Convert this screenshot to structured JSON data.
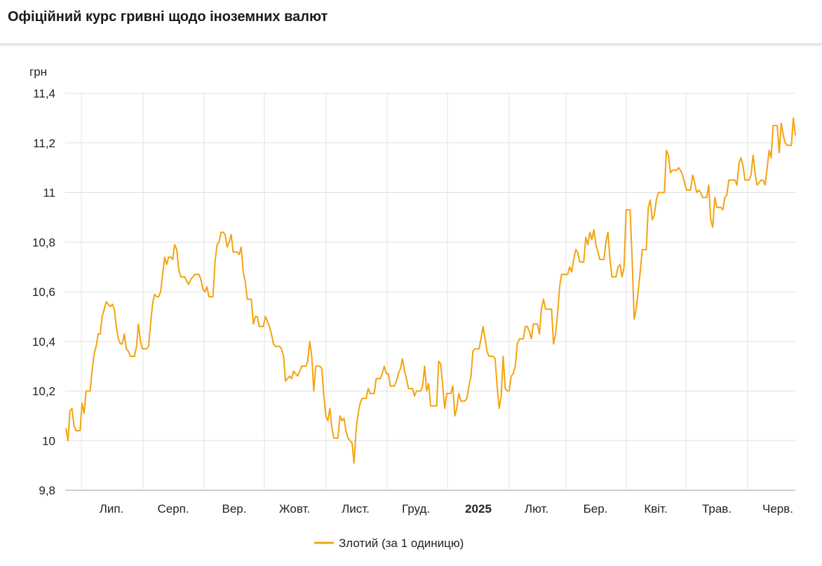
{
  "title": "Офіційний курс гривні щодо іноземних валют",
  "chart_data": {
    "type": "line",
    "y_unit": "грн",
    "ylim": [
      9.8,
      11.4
    ],
    "y_ticks": [
      "11,4",
      "11,2",
      "11",
      "10,8",
      "10,6",
      "10,4",
      "10,2",
      "10",
      "9,8"
    ],
    "x_ticks": [
      {
        "label": "Лип.",
        "bold": false
      },
      {
        "label": "Серп.",
        "bold": false
      },
      {
        "label": "Вер.",
        "bold": false
      },
      {
        "label": "Жовт.",
        "bold": false
      },
      {
        "label": "Лист.",
        "bold": false
      },
      {
        "label": "Груд.",
        "bold": false
      },
      {
        "label": "2025",
        "bold": true
      },
      {
        "label": "Лют.",
        "bold": false
      },
      {
        "label": "Бер.",
        "bold": false
      },
      {
        "label": "Квіт.",
        "bold": false
      },
      {
        "label": "Трав.",
        "bold": false
      },
      {
        "label": "Черв.",
        "bold": false
      }
    ],
    "grid": true,
    "legend_position": "bottom",
    "series": [
      {
        "name": "Злотий (за 1 одиницю)",
        "color": "#f4a30f",
        "values": [
          10.05,
          10.0,
          10.12,
          10.13,
          10.06,
          10.04,
          10.04,
          10.04,
          10.15,
          10.11,
          10.2,
          10.2,
          10.2,
          10.28,
          10.35,
          10.38,
          10.43,
          10.43,
          10.5,
          10.53,
          10.56,
          10.55,
          10.54,
          10.55,
          10.53,
          10.46,
          10.41,
          10.39,
          10.39,
          10.43,
          10.37,
          10.36,
          10.34,
          10.34,
          10.34,
          10.38,
          10.47,
          10.4,
          10.37,
          10.37,
          10.37,
          10.38,
          10.47,
          10.55,
          10.59,
          10.58,
          10.58,
          10.6,
          10.67,
          10.74,
          10.71,
          10.74,
          10.74,
          10.73,
          10.79,
          10.77,
          10.69,
          10.66,
          10.66,
          10.66,
          10.64,
          10.63,
          10.65,
          10.66,
          10.67,
          10.67,
          10.67,
          10.65,
          10.61,
          10.6,
          10.62,
          10.58,
          10.58,
          10.58,
          10.72,
          10.79,
          10.8,
          10.84,
          10.84,
          10.83,
          10.78,
          10.8,
          10.83,
          10.76,
          10.76,
          10.76,
          10.75,
          10.78,
          10.68,
          10.64,
          10.57,
          10.57,
          10.57,
          10.47,
          10.5,
          10.5,
          10.46,
          10.46,
          10.46,
          10.5,
          10.48,
          10.46,
          10.43,
          10.39,
          10.38,
          10.38,
          10.38,
          10.37,
          10.34,
          10.24,
          10.25,
          10.26,
          10.25,
          10.28,
          10.27,
          10.26,
          10.28,
          10.3,
          10.3,
          10.3,
          10.32,
          10.4,
          10.34,
          10.2,
          10.3,
          10.3,
          10.3,
          10.29,
          10.18,
          10.1,
          10.08,
          10.13,
          10.05,
          10.01,
          10.01,
          10.01,
          10.1,
          10.08,
          10.09,
          10.04,
          10.01,
          10.0,
          9.99,
          9.91,
          10.04,
          10.11,
          10.15,
          10.17,
          10.17,
          10.17,
          10.21,
          10.19,
          10.19,
          10.19,
          10.25,
          10.25,
          10.25,
          10.27,
          10.3,
          10.27,
          10.27,
          10.22,
          10.22,
          10.22,
          10.24,
          10.27,
          10.29,
          10.33,
          10.28,
          10.25,
          10.21,
          10.21,
          10.21,
          10.18,
          10.2,
          10.2,
          10.2,
          10.22,
          10.3,
          10.2,
          10.23,
          10.14,
          10.14,
          10.14,
          10.14,
          10.32,
          10.31,
          10.22,
          10.13,
          10.19,
          10.19,
          10.19,
          10.22,
          10.1,
          10.13,
          10.19,
          10.16,
          10.16,
          10.16,
          10.17,
          10.22,
          10.26,
          10.36,
          10.37,
          10.37,
          10.37,
          10.41,
          10.46,
          10.41,
          10.36,
          10.34,
          10.34,
          10.34,
          10.33,
          10.22,
          10.13,
          10.18,
          10.34,
          10.21,
          10.2,
          10.2,
          10.26,
          10.27,
          10.3,
          10.39,
          10.41,
          10.41,
          10.41,
          10.46,
          10.46,
          10.44,
          10.41,
          10.47,
          10.47,
          10.47,
          10.43,
          10.53,
          10.57,
          10.53,
          10.53,
          10.53,
          10.53,
          10.39,
          10.43,
          10.51,
          10.62,
          10.67,
          10.67,
          10.67,
          10.67,
          10.7,
          10.68,
          10.73,
          10.77,
          10.76,
          10.72,
          10.72,
          10.72,
          10.82,
          10.79,
          10.84,
          10.81,
          10.85,
          10.79,
          10.76,
          10.73,
          10.73,
          10.73,
          10.8,
          10.84,
          10.73,
          10.66,
          10.66,
          10.66,
          10.7,
          10.71,
          10.66,
          10.7,
          10.93,
          10.93,
          10.93,
          10.73,
          10.49,
          10.53,
          10.6,
          10.68,
          10.77,
          10.77,
          10.77,
          10.94,
          10.97,
          10.89,
          10.91,
          10.97,
          11.0,
          11.0,
          11.0,
          11.0,
          11.17,
          11.15,
          11.08,
          11.09,
          11.09,
          11.09,
          11.1,
          11.09,
          11.07,
          11.04,
          11.01,
          11.01,
          11.01,
          11.07,
          11.04,
          11.0,
          11.01,
          11.0,
          10.98,
          10.98,
          10.98,
          11.03,
          10.89,
          10.86,
          10.98,
          10.94,
          10.94,
          10.94,
          10.93,
          10.98,
          10.99,
          11.05,
          11.05,
          11.05,
          11.05,
          11.03,
          11.12,
          11.14,
          11.11,
          11.05,
          11.05,
          11.05,
          11.07,
          11.15,
          11.08,
          11.03,
          11.04,
          11.05,
          11.05,
          11.03,
          11.1,
          11.17,
          11.14,
          11.27,
          11.27,
          11.27,
          11.16,
          11.28,
          11.23,
          11.2,
          11.19,
          11.19,
          11.19,
          11.3,
          11.23
        ]
      }
    ]
  }
}
